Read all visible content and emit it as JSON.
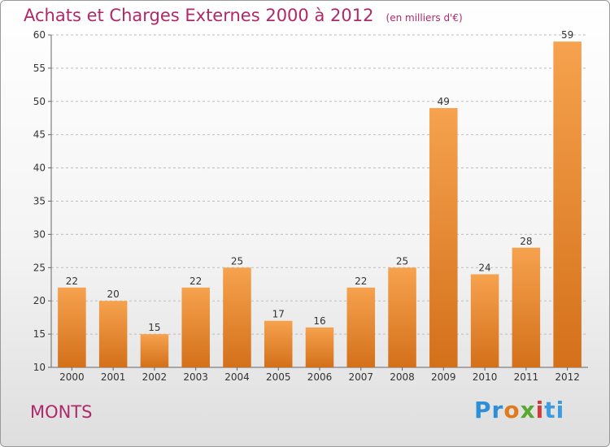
{
  "header": {
    "title": "Achats et Charges Externes 2000 à 2012",
    "unit": "(en milliers d'€)"
  },
  "footer": {
    "place": "MONTS",
    "logo_parts": [
      "Pr",
      "o",
      "x",
      "i",
      "ti"
    ]
  },
  "colors": {
    "title": "#b0286a",
    "bar_top": "#f6a24e",
    "bar_bottom": "#d4701a",
    "grid": "#bdbdbd"
  },
  "chart_data": {
    "type": "bar",
    "title": "Achats et Charges Externes 2000 à 2012",
    "subtitle": "(en milliers d'€)",
    "categories": [
      "2000",
      "2001",
      "2002",
      "2003",
      "2004",
      "2005",
      "2006",
      "2007",
      "2008",
      "2009",
      "2010",
      "2011",
      "2012"
    ],
    "values": [
      22,
      20,
      15,
      22,
      25,
      17,
      16,
      22,
      25,
      49,
      24,
      28,
      59
    ],
    "ylim": [
      10,
      60
    ],
    "yticks": [
      10,
      15,
      20,
      25,
      30,
      35,
      40,
      45,
      50,
      55,
      60
    ],
    "grid": true,
    "xlabel": "",
    "ylabel": ""
  }
}
